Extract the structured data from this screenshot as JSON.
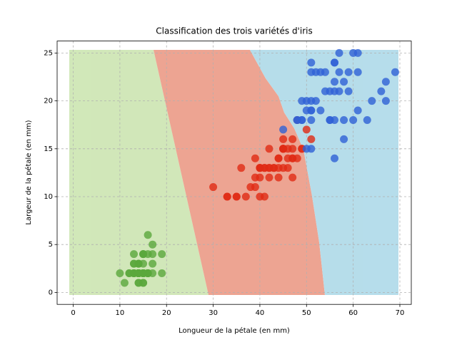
{
  "chart_data": {
    "type": "scatter",
    "title": "Classification des trois variétés d'iris",
    "xlabel": "Longueur de la pétale (en mm)",
    "ylabel": "Largeur de la pétale (en mm)",
    "xlim": [
      -3.45,
      72.45
    ],
    "ylim": [
      -1.25,
      26.25
    ],
    "xticks": [
      0,
      10,
      20,
      30,
      40,
      50,
      60,
      70
    ],
    "yticks": [
      0,
      5,
      10,
      15,
      20,
      25
    ],
    "grid": true,
    "series": [
      {
        "color": "#5aa83c",
        "x": [
          14,
          14,
          13,
          15,
          14,
          17,
          14,
          15,
          14,
          15,
          15,
          16,
          14,
          11,
          12,
          15,
          13,
          14,
          17,
          15,
          17,
          15,
          10,
          17,
          19,
          16,
          16,
          15,
          14,
          16,
          16,
          15,
          15,
          14,
          15,
          12,
          13,
          14,
          13,
          15,
          13,
          13,
          13,
          16,
          19,
          14,
          16,
          14,
          15,
          14
        ],
        "y": [
          2,
          2,
          2,
          2,
          2,
          4,
          3,
          2,
          2,
          1,
          2,
          2,
          1,
          1,
          2,
          4,
          4,
          3,
          3,
          3,
          2,
          4,
          2,
          5,
          2,
          2,
          4,
          2,
          2,
          2,
          2,
          4,
          1,
          2,
          2,
          2,
          2,
          1,
          2,
          2,
          3,
          3,
          2,
          6,
          4,
          3,
          2,
          2,
          2,
          2
        ]
      },
      {
        "color": "#e02a14",
        "x": [
          47,
          45,
          49,
          40,
          46,
          45,
          47,
          33,
          46,
          39,
          35,
          42,
          40,
          47,
          36,
          44,
          45,
          41,
          45,
          39,
          48,
          40,
          49,
          47,
          43,
          44,
          48,
          50,
          45,
          35,
          38,
          37,
          39,
          51,
          45,
          45,
          47,
          44,
          41,
          40,
          44,
          46,
          40,
          33,
          42,
          42,
          42,
          43,
          30,
          41
        ],
        "y": [
          14,
          15,
          15,
          13,
          15,
          13,
          16,
          10,
          13,
          14,
          10,
          15,
          10,
          14,
          13,
          14,
          15,
          10,
          15,
          11,
          18,
          13,
          15,
          12,
          13,
          14,
          14,
          17,
          15,
          10,
          11,
          10,
          12,
          16,
          15,
          16,
          15,
          13,
          13,
          13,
          12,
          14,
          12,
          10,
          13,
          12,
          13,
          13,
          11,
          13
        ]
      },
      {
        "color": "#2f62d6",
        "x": [
          60,
          51,
          59,
          56,
          58,
          66,
          45,
          63,
          58,
          61,
          51,
          53,
          55,
          50,
          51,
          53,
          55,
          67,
          69,
          50,
          57,
          49,
          67,
          49,
          57,
          60,
          48,
          49,
          56,
          58,
          61,
          64,
          56,
          51,
          56,
          61,
          56,
          55,
          48,
          54,
          56,
          51,
          51,
          59,
          57,
          52,
          50,
          52,
          54,
          51
        ],
        "y": [
          25,
          19,
          21,
          18,
          22,
          21,
          17,
          18,
          18,
          25,
          20,
          19,
          21,
          20,
          24,
          23,
          18,
          22,
          23,
          15,
          23,
          20,
          20,
          18,
          21,
          18,
          18,
          18,
          21,
          16,
          19,
          20,
          22,
          15,
          14,
          23,
          24,
          18,
          18,
          21,
          24,
          23,
          19,
          23,
          25,
          23,
          19,
          20,
          23,
          18
        ]
      }
    ]
  }
}
